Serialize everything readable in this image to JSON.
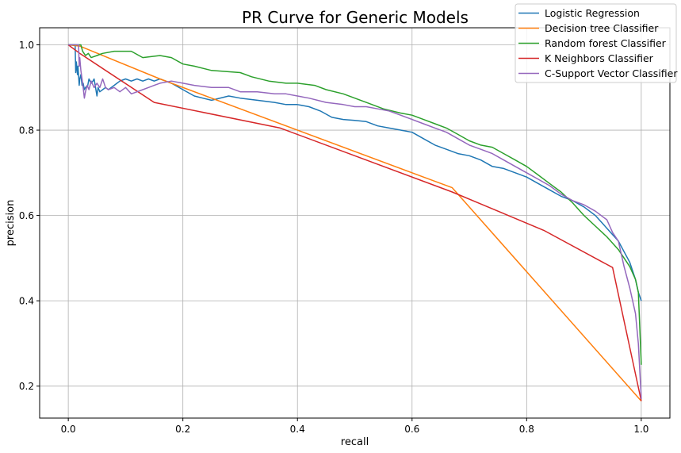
{
  "chart_data": {
    "type": "line",
    "title": "PR Curve for Generic Models",
    "xlabel": "recall",
    "ylabel": "precision",
    "xlim": [
      -0.05,
      1.05
    ],
    "ylim": [
      0.125,
      1.04
    ],
    "xticks": [
      0.0,
      0.2,
      0.4,
      0.6,
      0.8,
      1.0
    ],
    "xtick_labels": [
      "0.0",
      "0.2",
      "0.4",
      "0.6",
      "0.8",
      "1.0"
    ],
    "yticks": [
      0.2,
      0.4,
      0.6,
      0.8,
      1.0
    ],
    "ytick_labels": [
      "0.2",
      "0.4",
      "0.6",
      "0.8",
      "1.0"
    ],
    "grid": true,
    "legend_position": "top-right",
    "series": [
      {
        "name": "Logistic Regression",
        "color": "#1f77b4",
        "x": [
          0.0,
          0.012,
          0.013,
          0.014,
          0.016,
          0.017,
          0.019,
          0.02,
          0.022,
          0.024,
          0.026,
          0.028,
          0.03,
          0.034,
          0.036,
          0.04,
          0.043,
          0.045,
          0.05,
          0.052,
          0.055,
          0.06,
          0.065,
          0.07,
          0.075,
          0.08,
          0.085,
          0.09,
          0.1,
          0.11,
          0.12,
          0.13,
          0.14,
          0.15,
          0.16,
          0.18,
          0.2,
          0.22,
          0.25,
          0.28,
          0.3,
          0.33,
          0.36,
          0.38,
          0.4,
          0.42,
          0.44,
          0.46,
          0.48,
          0.5,
          0.52,
          0.54,
          0.56,
          0.58,
          0.6,
          0.62,
          0.64,
          0.66,
          0.68,
          0.7,
          0.72,
          0.74,
          0.76,
          0.78,
          0.8,
          0.82,
          0.84,
          0.86,
          0.88,
          0.9,
          0.92,
          0.94,
          0.96,
          0.98,
          0.99,
          0.995,
          1.0
        ],
        "y": [
          1.0,
          1.0,
          0.935,
          0.96,
          0.93,
          0.95,
          0.905,
          0.92,
          0.93,
          0.905,
          0.91,
          0.895,
          0.9,
          0.905,
          0.92,
          0.91,
          0.915,
          0.92,
          0.88,
          0.9,
          0.89,
          0.895,
          0.9,
          0.895,
          0.9,
          0.905,
          0.91,
          0.915,
          0.92,
          0.915,
          0.92,
          0.915,
          0.92,
          0.915,
          0.92,
          0.91,
          0.895,
          0.88,
          0.87,
          0.88,
          0.875,
          0.87,
          0.865,
          0.86,
          0.86,
          0.855,
          0.845,
          0.83,
          0.825,
          0.823,
          0.82,
          0.81,
          0.805,
          0.8,
          0.795,
          0.78,
          0.765,
          0.755,
          0.745,
          0.74,
          0.73,
          0.715,
          0.71,
          0.7,
          0.69,
          0.675,
          0.66,
          0.645,
          0.635,
          0.62,
          0.6,
          0.57,
          0.54,
          0.49,
          0.45,
          0.42,
          0.4
        ]
      },
      {
        "name": "Decision tree Classifier",
        "color": "#ff7f0e",
        "x": [
          0.0,
          0.02,
          0.16,
          0.62,
          0.67,
          1.0
        ],
        "y": [
          1.0,
          0.997,
          0.92,
          0.69,
          0.665,
          0.165
        ]
      },
      {
        "name": "Random forest Classifier",
        "color": "#2ca02c",
        "x": [
          0.0,
          0.018,
          0.022,
          0.025,
          0.03,
          0.035,
          0.04,
          0.05,
          0.06,
          0.08,
          0.11,
          0.13,
          0.16,
          0.18,
          0.2,
          0.22,
          0.25,
          0.3,
          0.32,
          0.35,
          0.38,
          0.4,
          0.43,
          0.45,
          0.48,
          0.5,
          0.52,
          0.55,
          0.58,
          0.6,
          0.62,
          0.64,
          0.66,
          0.68,
          0.7,
          0.72,
          0.74,
          0.76,
          0.78,
          0.8,
          0.82,
          0.84,
          0.86,
          0.88,
          0.9,
          0.92,
          0.94,
          0.96,
          0.98,
          0.99,
          0.995,
          1.0
        ],
        "y": [
          1.0,
          1.0,
          1.0,
          0.985,
          0.975,
          0.98,
          0.97,
          0.975,
          0.98,
          0.985,
          0.985,
          0.97,
          0.975,
          0.97,
          0.955,
          0.95,
          0.94,
          0.935,
          0.925,
          0.915,
          0.91,
          0.91,
          0.905,
          0.895,
          0.885,
          0.875,
          0.865,
          0.85,
          0.84,
          0.835,
          0.825,
          0.815,
          0.805,
          0.79,
          0.775,
          0.765,
          0.76,
          0.745,
          0.73,
          0.715,
          0.695,
          0.675,
          0.655,
          0.63,
          0.6,
          0.575,
          0.55,
          0.52,
          0.48,
          0.45,
          0.42,
          0.25
        ]
      },
      {
        "name": "K Neighbors Classifier",
        "color": "#d62728",
        "x": [
          0.0,
          0.02,
          0.15,
          0.37,
          0.67,
          0.83,
          0.95,
          1.0
        ],
        "y": [
          1.0,
          0.98,
          0.865,
          0.805,
          0.655,
          0.565,
          0.478,
          0.165
        ]
      },
      {
        "name": "C-Support Vector Classifier",
        "color": "#9467bd",
        "x": [
          0.0,
          0.018,
          0.019,
          0.02,
          0.022,
          0.024,
          0.026,
          0.028,
          0.03,
          0.033,
          0.036,
          0.04,
          0.045,
          0.05,
          0.055,
          0.06,
          0.065,
          0.07,
          0.08,
          0.09,
          0.1,
          0.11,
          0.12,
          0.13,
          0.14,
          0.15,
          0.16,
          0.18,
          0.2,
          0.22,
          0.25,
          0.28,
          0.3,
          0.33,
          0.36,
          0.38,
          0.4,
          0.42,
          0.45,
          0.48,
          0.5,
          0.52,
          0.54,
          0.56,
          0.58,
          0.6,
          0.62,
          0.64,
          0.66,
          0.68,
          0.7,
          0.72,
          0.74,
          0.76,
          0.78,
          0.8,
          0.82,
          0.84,
          0.86,
          0.88,
          0.9,
          0.92,
          0.94,
          0.95,
          0.96,
          0.97,
          0.98,
          0.99,
          0.995,
          1.0
        ],
        "y": [
          1.0,
          1.0,
          0.95,
          0.97,
          0.94,
          0.92,
          0.9,
          0.875,
          0.89,
          0.905,
          0.895,
          0.915,
          0.9,
          0.91,
          0.9,
          0.92,
          0.9,
          0.895,
          0.9,
          0.89,
          0.9,
          0.885,
          0.89,
          0.895,
          0.9,
          0.905,
          0.91,
          0.915,
          0.91,
          0.905,
          0.9,
          0.9,
          0.89,
          0.89,
          0.885,
          0.885,
          0.88,
          0.875,
          0.865,
          0.86,
          0.855,
          0.855,
          0.85,
          0.845,
          0.835,
          0.825,
          0.815,
          0.805,
          0.795,
          0.78,
          0.765,
          0.755,
          0.745,
          0.73,
          0.715,
          0.7,
          0.685,
          0.67,
          0.65,
          0.635,
          0.625,
          0.61,
          0.59,
          0.56,
          0.54,
          0.48,
          0.43,
          0.37,
          0.3,
          0.17
        ]
      }
    ]
  }
}
